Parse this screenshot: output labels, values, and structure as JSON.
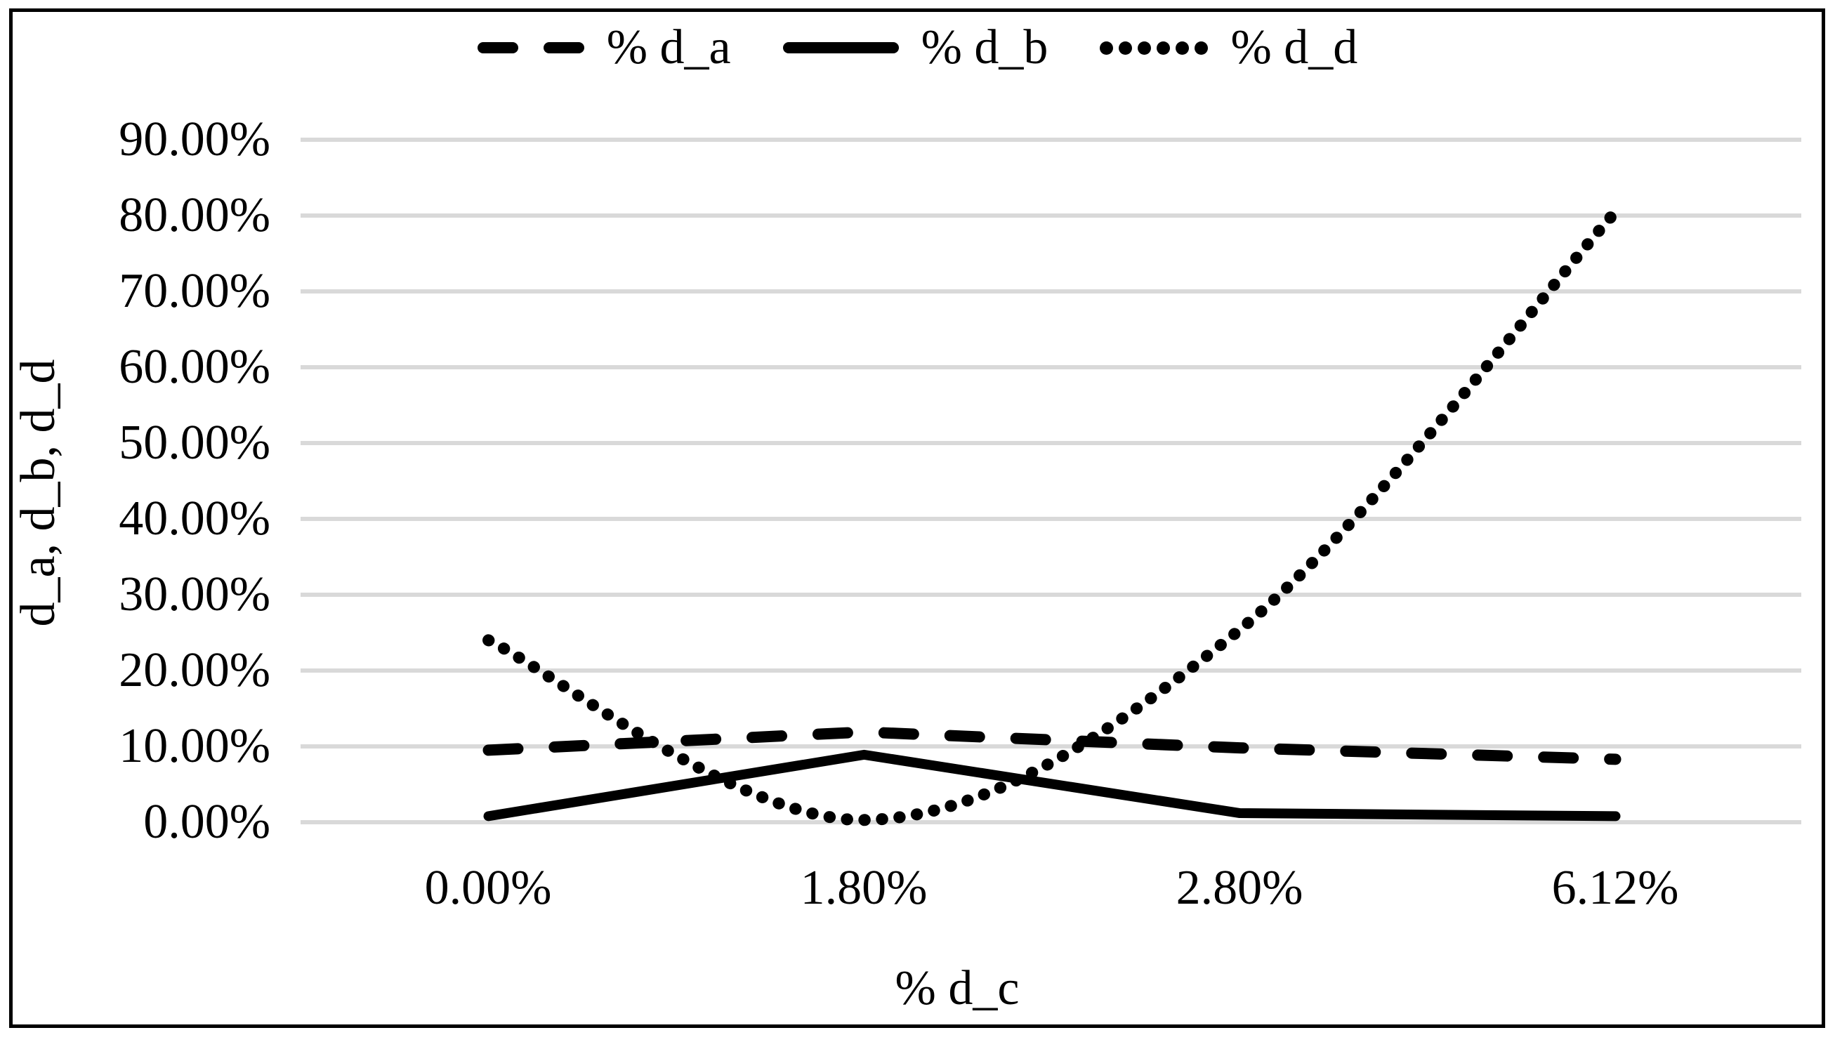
{
  "figure": {
    "background_color": "#ffffff",
    "border_color": "#000000"
  },
  "legend": {
    "position": "top-center",
    "items": [
      {
        "label": "% d_a",
        "style": "dashed"
      },
      {
        "label": "% d_b",
        "style": "solid"
      },
      {
        "label": "% d_d",
        "style": "dotted"
      }
    ]
  },
  "chart_data": {
    "type": "line",
    "title": "",
    "xlabel": "% d_c",
    "ylabel": "d_a, d_b, d_d",
    "categories": [
      "0.00%",
      "1.80%",
      "2.80%",
      "6.12%"
    ],
    "x_values_pct": [
      0.0,
      1.8,
      2.8,
      6.12
    ],
    "series": [
      {
        "name": "% d_a",
        "style": "dashed",
        "smooth": false,
        "values_pct": [
          9.5,
          11.9,
          9.8,
          8.3
        ]
      },
      {
        "name": "% d_b",
        "style": "solid",
        "smooth": false,
        "values_pct": [
          0.8,
          8.9,
          1.2,
          0.8
        ]
      },
      {
        "name": "% d_d",
        "style": "dotted",
        "smooth": true,
        "values_pct": [
          24.0,
          0.3,
          25.4,
          80.5
        ]
      }
    ],
    "y_ticks": [
      "0.00%",
      "10.00%",
      "20.00%",
      "30.00%",
      "40.00%",
      "50.00%",
      "60.00%",
      "70.00%",
      "80.00%",
      "90.00%"
    ],
    "ylim": [
      0,
      90
    ],
    "y_tick_step_pct": 10,
    "grid": true,
    "gridline_color": "#d9d9d9",
    "line_color": "#000000",
    "legend_position": "top"
  }
}
